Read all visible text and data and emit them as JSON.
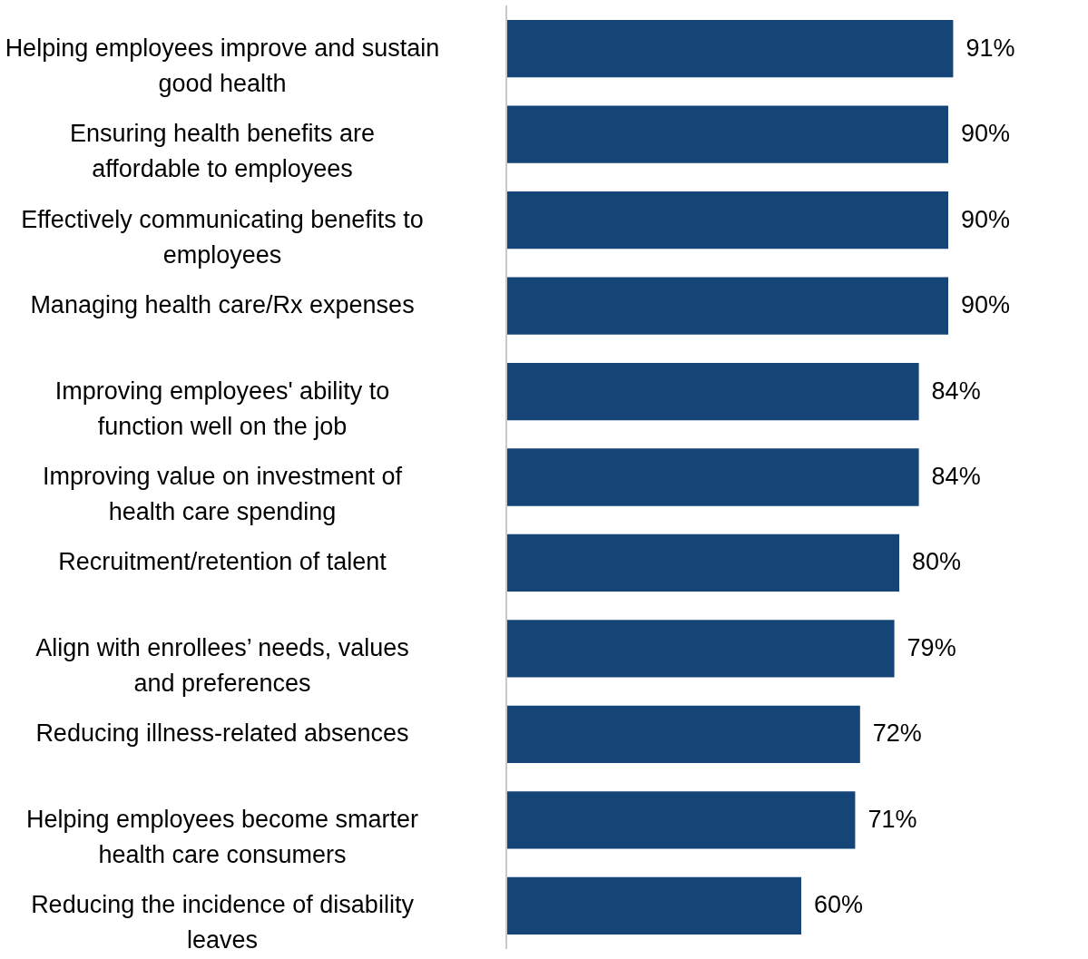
{
  "chart_data": {
    "type": "bar",
    "orientation": "horizontal",
    "color": "#154577",
    "categories": [
      "Helping employees improve and sustain good health",
      "Ensuring health benefits are affordable to employees",
      "Effectively communicating benefits to employees",
      "Managing health care/Rx expenses",
      "Improving employees' ability to function well on the job",
      "Improving value on investment of health care spending",
      "Recruitment/retention of talent",
      "Align with enrollees’ needs, values and preferences",
      "Reducing illness-related absences",
      "Helping employees become smarter health care consumers",
      "Reducing the incidence of disability leaves"
    ],
    "values": [
      91,
      90,
      90,
      90,
      84,
      84,
      80,
      79,
      72,
      71,
      60
    ],
    "value_labels": [
      "91%",
      "90%",
      "90%",
      "90%",
      "84%",
      "84%",
      "80%",
      "79%",
      "72%",
      "71%",
      "60%"
    ]
  }
}
